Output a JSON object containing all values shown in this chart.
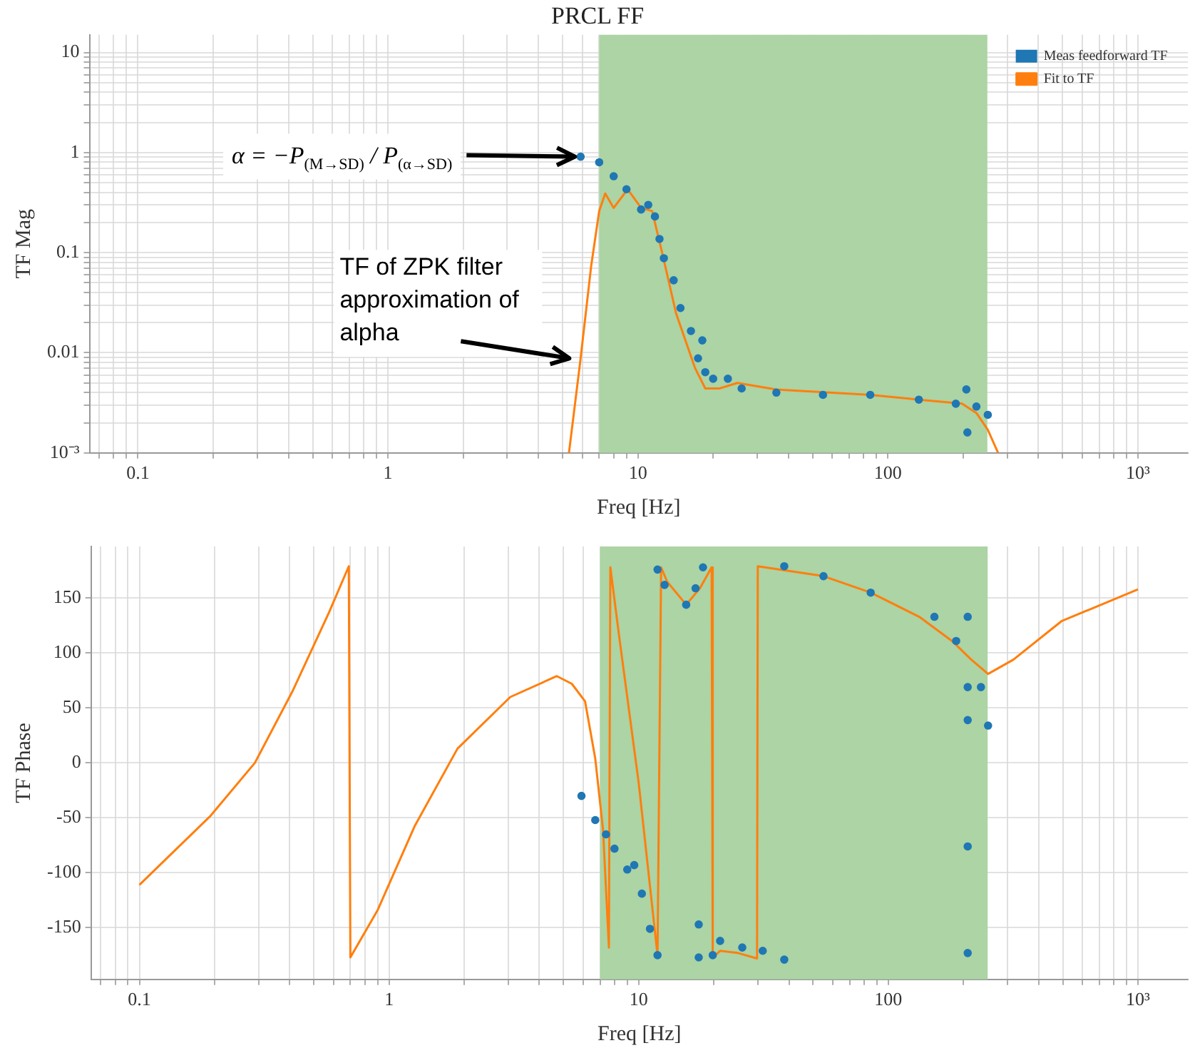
{
  "chart_data": [
    {
      "type": "scatter",
      "title": "PRCL FF",
      "xlabel": "Freq [Hz]",
      "ylabel": "TF Mag",
      "log": "xy",
      "grid": true,
      "legend": "top right",
      "xlim": [
        0.064,
        1585
      ],
      "ylim": [
        0.001,
        15
      ],
      "xticks": [
        {
          "value": 0.07,
          "label": null
        },
        {
          "value": 0.08,
          "label": null
        },
        {
          "value": 0.09,
          "label": null
        },
        0.1,
        {
          "value": 0.2,
          "label": null
        },
        {
          "value": 0.3,
          "label": null
        },
        {
          "value": 0.4,
          "label": null
        },
        {
          "value": 0.5,
          "label": null
        },
        {
          "value": 0.6,
          "label": null
        },
        {
          "value": 0.7,
          "label": null
        },
        {
          "value": 0.8,
          "label": null
        },
        {
          "value": 0.9,
          "label": null
        },
        1,
        {
          "value": 2,
          "label": null
        },
        {
          "value": 3,
          "label": null
        },
        {
          "value": 4,
          "label": null
        },
        {
          "value": 5,
          "label": null
        },
        {
          "value": 6,
          "label": null
        },
        {
          "value": 7,
          "label": null
        },
        {
          "value": 8,
          "label": null
        },
        {
          "value": 9,
          "label": null
        },
        10,
        {
          "value": 20,
          "label": null
        },
        {
          "value": 30,
          "label": null
        },
        {
          "value": 40,
          "label": null
        },
        {
          "value": 50,
          "label": null
        },
        {
          "value": 60,
          "label": null
        },
        {
          "value": 70,
          "label": null
        },
        {
          "value": 80,
          "label": null
        },
        {
          "value": 90,
          "label": null
        },
        100,
        {
          "value": 200,
          "label": null
        },
        {
          "value": 300,
          "label": null
        },
        {
          "value": 400,
          "label": null
        },
        {
          "value": 500,
          "label": null
        },
        {
          "value": 600,
          "label": null
        },
        {
          "value": 700,
          "label": null
        },
        {
          "value": 800,
          "label": null
        },
        {
          "value": 900,
          "label": null
        },
        {
          "value": 1000,
          "label": "10³"
        }
      ],
      "yticks": [
        {
          "value": 0.001,
          "label": "10⁻³"
        },
        {
          "value": 0.002,
          "label": null
        },
        {
          "value": 0.003,
          "label": null
        },
        {
          "value": 0.004,
          "label": null
        },
        {
          "value": 0.005,
          "label": null
        },
        {
          "value": 0.006,
          "label": null
        },
        {
          "value": 0.007,
          "label": null
        },
        {
          "value": 0.008,
          "label": null
        },
        {
          "value": 0.009,
          "label": null
        },
        0.01,
        {
          "value": 0.02,
          "label": null
        },
        {
          "value": 0.03,
          "label": null
        },
        {
          "value": 0.04,
          "label": null
        },
        {
          "value": 0.05,
          "label": null
        },
        {
          "value": 0.06,
          "label": null
        },
        {
          "value": 0.07,
          "label": null
        },
        {
          "value": 0.08,
          "label": null
        },
        {
          "value": 0.09,
          "label": null
        },
        0.1,
        {
          "value": 0.2,
          "label": null
        },
        {
          "value": 0.3,
          "label": null
        },
        {
          "value": 0.4,
          "label": null
        },
        {
          "value": 0.5,
          "label": null
        },
        {
          "value": 0.6,
          "label": null
        },
        {
          "value": 0.7,
          "label": null
        },
        {
          "value": 0.8,
          "label": null
        },
        {
          "value": 0.9,
          "label": null
        },
        1,
        {
          "value": 2,
          "label": null
        },
        {
          "value": 3,
          "label": null
        },
        {
          "value": 4,
          "label": null
        },
        {
          "value": 5,
          "label": null
        },
        {
          "value": 6,
          "label": null
        },
        {
          "value": 7,
          "label": null
        },
        {
          "value": 8,
          "label": null
        },
        {
          "value": 9,
          "label": null
        },
        10
      ],
      "bands": [
        {
          "axis": "x",
          "from": 7,
          "to": 250,
          "color": "#acd4a4"
        }
      ],
      "annotations": [
        {
          "text": "α = −P$_{(M→SD)}$ / P$_{(α→SD)}$",
          "x": 5.9,
          "y": 0.91
        },
        {
          "text": "TF of ZPK filter approximation of alpha",
          "x": 5.6,
          "y": 0.0088
        }
      ],
      "series": [
        {
          "name": "Meas feedforward TF",
          "type": "scatter",
          "marker": "circle",
          "color": "#1f77b4",
          "x": [
            5.9,
            7.0,
            8.0,
            9.0,
            10.3,
            11,
            11.7,
            12.2,
            12.7,
            13.9,
            14.8,
            16.3,
            17.4,
            18.1,
            18.6,
            20,
            22.9,
            26,
            35.8,
            55,
            85,
            133,
            187,
            206,
            208,
            226,
            251
          ],
          "values": [
            0.91,
            0.8,
            0.58,
            0.43,
            0.27,
            0.3,
            0.23,
            0.137,
            0.088,
            0.053,
            0.028,
            0.0165,
            0.0088,
            0.0133,
            0.0064,
            0.0055,
            0.0055,
            0.0044,
            0.004,
            0.0038,
            0.0038,
            0.0034,
            0.0031,
            0.0043,
            0.0016,
            0.0029,
            0.0024
          ]
        },
        {
          "name": "Fit to TF",
          "type": "line",
          "color": "#ff7f0e",
          "x": [
            5.3,
            5.9,
            6.5,
            7.0,
            7.4,
            8.0,
            9.1,
            10.3,
            11.4,
            12.5,
            14.2,
            16.9,
            18.6,
            21.2,
            25,
            35.8,
            85,
            133,
            198,
            226,
            251,
            276
          ],
          "values": [
            0.001,
            0.0088,
            0.073,
            0.26,
            0.39,
            0.28,
            0.43,
            0.28,
            0.26,
            0.1,
            0.025,
            0.0071,
            0.0044,
            0.0044,
            0.005,
            0.0043,
            0.0038,
            0.0034,
            0.0031,
            0.0025,
            0.0017,
            0.001
          ]
        }
      ]
    },
    {
      "type": "scatter",
      "xlabel": "Freq [Hz]",
      "ylabel": "TF Phase",
      "log": "x",
      "grid": true,
      "xlim": [
        0.064,
        1585
      ],
      "ylim": [
        -197,
        197
      ],
      "xticks": [
        {
          "value": 0.07,
          "label": null
        },
        {
          "value": 0.08,
          "label": null
        },
        {
          "value": 0.09,
          "label": null
        },
        0.1,
        {
          "value": 0.2,
          "label": null
        },
        {
          "value": 0.3,
          "label": null
        },
        {
          "value": 0.4,
          "label": null
        },
        {
          "value": 0.5,
          "label": null
        },
        {
          "value": 0.6,
          "label": null
        },
        {
          "value": 0.7,
          "label": null
        },
        {
          "value": 0.8,
          "label": null
        },
        {
          "value": 0.9,
          "label": null
        },
        1,
        {
          "value": 2,
          "label": null
        },
        {
          "value": 3,
          "label": null
        },
        {
          "value": 4,
          "label": null
        },
        {
          "value": 5,
          "label": null
        },
        {
          "value": 6,
          "label": null
        },
        {
          "value": 7,
          "label": null
        },
        {
          "value": 8,
          "label": null
        },
        {
          "value": 9,
          "label": null
        },
        10,
        {
          "value": 20,
          "label": null
        },
        {
          "value": 30,
          "label": null
        },
        {
          "value": 40,
          "label": null
        },
        {
          "value": 50,
          "label": null
        },
        {
          "value": 60,
          "label": null
        },
        {
          "value": 70,
          "label": null
        },
        {
          "value": 80,
          "label": null
        },
        {
          "value": 90,
          "label": null
        },
        100,
        {
          "value": 200,
          "label": null
        },
        {
          "value": 300,
          "label": null
        },
        {
          "value": 400,
          "label": null
        },
        {
          "value": 500,
          "label": null
        },
        {
          "value": 600,
          "label": null
        },
        {
          "value": 700,
          "label": null
        },
        {
          "value": 800,
          "label": null
        },
        {
          "value": 900,
          "label": null
        },
        {
          "value": 1000,
          "label": "10³"
        }
      ],
      "yticks": [
        -150,
        -100,
        -50,
        0,
        50,
        100,
        150
      ],
      "bands": [
        {
          "axis": "x",
          "from": 7,
          "to": 250,
          "color": "#acd4a4"
        }
      ],
      "series": [
        {
          "type": "scatter",
          "marker": "circle",
          "color": "#1f77b4",
          "x": [
            5.9,
            6.7,
            7.4,
            8.0,
            9.0,
            9.6,
            10.3,
            11.1,
            11.9,
            11.9,
            12.7,
            15.5,
            16.9,
            18.1,
            17.4,
            17.4,
            19.8,
            21.2,
            26,
            31.4,
            38.3,
            38.3,
            55,
            85,
            153,
            187,
            208,
            208,
            208,
            208,
            208,
            235,
            251
          ],
          "values": [
            -30,
            -52,
            -65,
            -78,
            -97,
            -93,
            -119,
            -151,
            -175,
            176,
            162,
            144,
            159,
            178,
            -147,
            -177,
            -175,
            -162,
            -168,
            -171,
            -179,
            179,
            170,
            155,
            133,
            111,
            133,
            69,
            39,
            -76,
            -173,
            69,
            34
          ]
        },
        {
          "type": "line",
          "color": "#ff7f0e",
          "x": [
            0.1,
            0.193,
            0.29,
            0.41,
            0.575,
            0.69,
            0.7,
            0.9,
            1.27,
            1.88,
            3.06,
            4.7,
            5.4,
            6.1,
            6.7,
            7.2,
            7.6,
            7.7,
            8.4,
            10,
            11.9,
            12.3,
            13,
            15.5,
            17.6,
            19.6,
            19.8,
            21.2,
            25,
            29.8,
            30,
            55,
            85,
            133,
            180,
            215,
            251,
            317,
            494,
            1000
          ],
          "values": [
            -111,
            -48,
            0,
            65,
            137,
            179,
            -177,
            -134,
            -57,
            13,
            60,
            79,
            72,
            56,
            4,
            -61,
            -168,
            178,
            111,
            -18,
            -175,
            178,
            165,
            144,
            159,
            178,
            -177,
            -171,
            -173,
            -178,
            179,
            170,
            155,
            133,
            111,
            94,
            81,
            94,
            129,
            158
          ]
        }
      ]
    }
  ]
}
